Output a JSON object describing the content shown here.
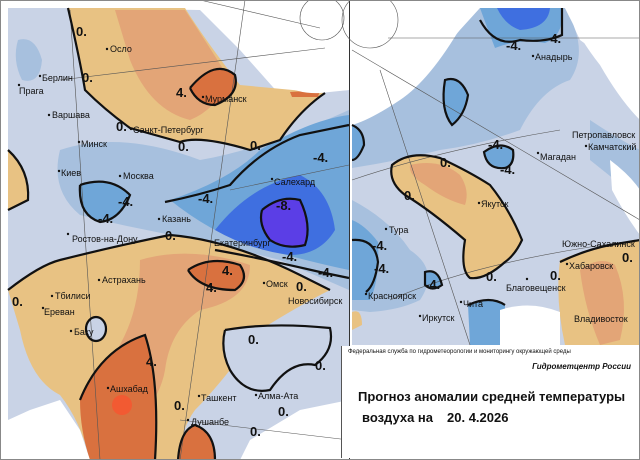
{
  "title": {
    "agency": "Федеральная служба по гидрометеорологии и мониторингу окружающей среды",
    "center": "Гидрометцентр России",
    "line1": "Прогноз аномалии средней температуры",
    "line2_prefix": "воздуха на",
    "date": "20. 4.2026"
  },
  "colors": {
    "near_zero": "#c9d3e6",
    "cold_1": "#a7c0de",
    "cold_2": "#6fa6d8",
    "cold_3": "#3f6fe0",
    "cold_4": "#5b3ee6",
    "warm_1": "#e8c283",
    "warm_2": "#e3a577",
    "warm_3": "#d9713f",
    "warm_4": "#f25a32"
  },
  "cities_west": [
    "Осло",
    "Берлин",
    "Прага",
    "Варшава",
    "Мурманск",
    "Санкт-Петербург",
    "Минск",
    "Киев",
    "Москва",
    "Салехард",
    "Казань",
    "Ростов-на-Дону",
    "Екатеринбург",
    "Астрахань",
    "Омск",
    "Тбилиси",
    "Новосибирск",
    "Ереван",
    "Баку",
    "Ашхабад",
    "Ташкент",
    "Алма-Ата",
    "Душанбе"
  ],
  "cities_east": [
    "Анадырь",
    "Петропавловск",
    "Камчатский",
    "Магадан",
    "Якутск",
    "Тура",
    "Южно-Сахалинск",
    "Хабаровск",
    "Благовещенск",
    "Красноярск",
    "Чита",
    "Иркутск",
    "Владивосток"
  ],
  "contour_labels_west": [
    "0.",
    "0.",
    "0.",
    "0.",
    "4.",
    "0.",
    "-4.",
    "-4.",
    "-4.",
    "-8.",
    "-4.",
    "0.",
    "-4.",
    "4.",
    "4.",
    "-4.",
    "0.",
    "0.",
    "4.",
    "0.",
    "0.",
    "0.",
    "0.",
    "0."
  ],
  "contour_labels_east": [
    "-4.",
    "-4.",
    "-4.",
    "-4.",
    "0.",
    "0.",
    "0.",
    "-4.",
    "-4.",
    "-4.",
    "0.",
    "0."
  ]
}
